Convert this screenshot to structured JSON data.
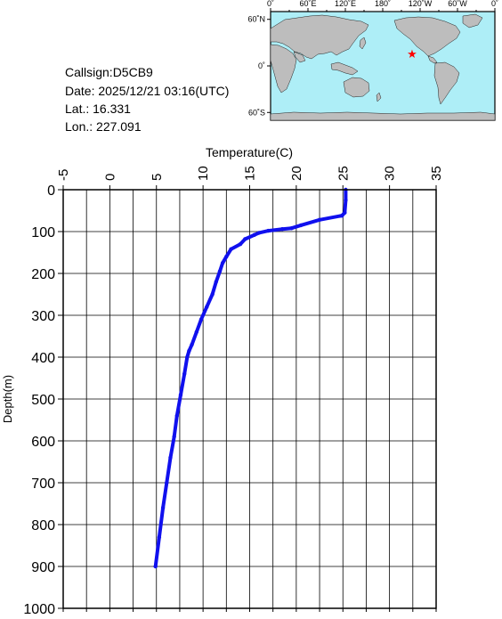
{
  "info": {
    "callsign": "Callsign:D5CB9",
    "date": "Date:  2025/12/21 03:16(UTC)",
    "lat": "Lat.:  16.331",
    "lon": "Lon.:  227.091"
  },
  "map": {
    "top_ticks": [
      "0˚",
      "60˚E",
      "120˚E",
      "180˚",
      "120˚W",
      "60˚W",
      "0˚"
    ],
    "lat_ticks": [
      "60˚N",
      "0˚",
      "60˚S"
    ],
    "ocean_color": "#aeeef7",
    "land_color": "#bdbdbd",
    "marker_color": "#ff0000",
    "marker_icon": "star-icon",
    "marker_lon": 227.091,
    "marker_lat": 16.331
  },
  "chart_data": {
    "type": "line",
    "title": "",
    "xlabel": "Temperature(C)",
    "ylabel": "Depth(m)",
    "xlim": [
      -5,
      35
    ],
    "ylim": [
      1000,
      0
    ],
    "x_ticks": [
      "-5",
      "0",
      "5",
      "10",
      "15",
      "20",
      "25",
      "30",
      "35"
    ],
    "y_ticks": [
      "0",
      "100",
      "200",
      "300",
      "400",
      "500",
      "600",
      "700",
      "800",
      "900",
      "1000"
    ],
    "grid": true,
    "line_color": "#1010ee",
    "series": [
      {
        "x": [
          25.3,
          25.3,
          25.2,
          24.9,
          22.5,
          20.5,
          19.5,
          18.5,
          17.0,
          16.0,
          15.5,
          14.5,
          14.0,
          13.0,
          12.5,
          12.1,
          11.8,
          11.4,
          11.0,
          10.4,
          9.8,
          9.3,
          8.8,
          8.5,
          8.3,
          8.0,
          7.6,
          7.2,
          6.9,
          6.5,
          6.1,
          5.7,
          5.3,
          4.9
        ],
        "y": [
          0,
          25,
          55,
          62,
          72,
          85,
          92,
          94,
          98,
          103,
          108,
          118,
          130,
          142,
          160,
          175,
          195,
          220,
          250,
          280,
          310,
          340,
          370,
          385,
          400,
          440,
          490,
          540,
          590,
          640,
          700,
          760,
          830,
          900
        ]
      }
    ]
  }
}
